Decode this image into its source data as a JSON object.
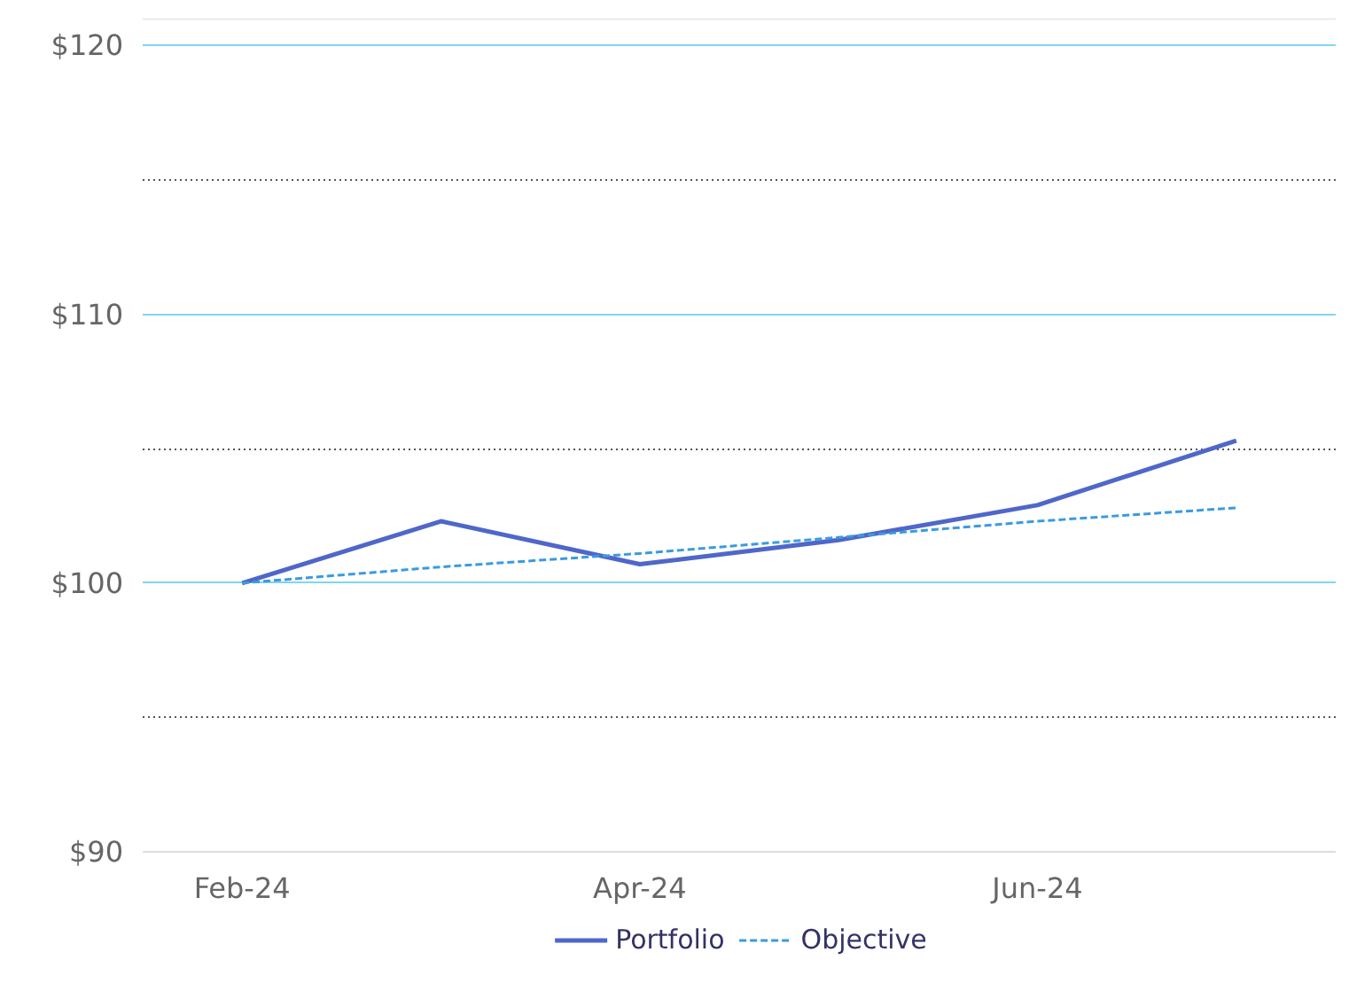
{
  "chart_data": {
    "type": "line",
    "categories": [
      "Feb-24",
      null,
      "Apr-24",
      null,
      "Jun-24",
      null
    ],
    "series": [
      {
        "name": "Portfolio",
        "color": "#4f67c9",
        "line_style": "solid",
        "values": [
          100,
          102.3,
          100.7,
          101.6,
          102.9,
          105.3
        ]
      },
      {
        "name": "Objective",
        "color": "#3a9be0",
        "line_style": "dashed",
        "values": [
          100,
          100.6,
          101.1,
          101.7,
          102.3,
          102.8
        ]
      }
    ],
    "ylim": [
      90,
      121
    ],
    "yticks": [
      {
        "value": 90,
        "label": "$90"
      },
      {
        "value": 95,
        "label": null
      },
      {
        "value": 100,
        "label": "$100"
      },
      {
        "value": 105,
        "label": null
      },
      {
        "value": 110,
        "label": "$110"
      },
      {
        "value": 115,
        "label": null
      },
      {
        "value": 120,
        "label": "$120"
      }
    ],
    "grid": "y",
    "legend": "bottom",
    "marker": "none"
  }
}
